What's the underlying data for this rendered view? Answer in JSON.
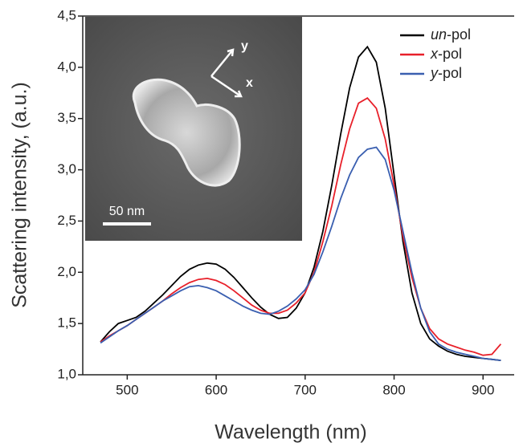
{
  "chart_data": {
    "type": "line",
    "xlabel": "Wavelength (nm)",
    "ylabel": "Scattering intensity, (a.u.)",
    "x": [
      470,
      480,
      490,
      500,
      510,
      520,
      530,
      540,
      550,
      560,
      570,
      580,
      590,
      600,
      610,
      620,
      630,
      640,
      650,
      660,
      670,
      680,
      690,
      700,
      710,
      720,
      730,
      740,
      750,
      760,
      770,
      780,
      790,
      800,
      810,
      820,
      830,
      840,
      850,
      860,
      870,
      880,
      890,
      900,
      910,
      920
    ],
    "series": [
      {
        "name": "un-pol",
        "color": "#000000",
        "values": [
          1.32,
          1.42,
          1.5,
          1.53,
          1.56,
          1.62,
          1.7,
          1.78,
          1.87,
          1.96,
          2.03,
          2.07,
          2.09,
          2.08,
          2.03,
          1.95,
          1.85,
          1.75,
          1.66,
          1.59,
          1.55,
          1.56,
          1.65,
          1.8,
          2.05,
          2.4,
          2.85,
          3.35,
          3.8,
          4.1,
          4.2,
          4.05,
          3.6,
          2.95,
          2.3,
          1.8,
          1.5,
          1.35,
          1.28,
          1.23,
          1.2,
          1.18,
          1.17,
          1.16,
          1.15,
          1.14
        ]
      },
      {
        "name": "x-pol",
        "color": "#e8202a",
        "values": [
          1.32,
          1.38,
          1.43,
          1.48,
          1.54,
          1.6,
          1.66,
          1.72,
          1.79,
          1.85,
          1.9,
          1.93,
          1.94,
          1.92,
          1.88,
          1.82,
          1.75,
          1.68,
          1.63,
          1.6,
          1.6,
          1.63,
          1.7,
          1.8,
          2.0,
          2.3,
          2.65,
          3.05,
          3.4,
          3.65,
          3.7,
          3.6,
          3.3,
          2.85,
          2.35,
          1.95,
          1.65,
          1.45,
          1.35,
          1.3,
          1.27,
          1.24,
          1.22,
          1.19,
          1.2,
          1.3
        ]
      },
      {
        "name": "y-pol",
        "color": "#3a5fb0",
        "values": [
          1.31,
          1.37,
          1.43,
          1.48,
          1.54,
          1.6,
          1.66,
          1.72,
          1.77,
          1.82,
          1.86,
          1.87,
          1.85,
          1.82,
          1.77,
          1.72,
          1.67,
          1.63,
          1.6,
          1.59,
          1.62,
          1.67,
          1.74,
          1.83,
          1.98,
          2.2,
          2.45,
          2.72,
          2.95,
          3.12,
          3.2,
          3.22,
          3.1,
          2.8,
          2.4,
          2.0,
          1.65,
          1.42,
          1.3,
          1.25,
          1.22,
          1.2,
          1.18,
          1.16,
          1.15,
          1.14
        ]
      }
    ],
    "xlim": [
      450,
      935
    ],
    "xticks": [
      500,
      600,
      700,
      800,
      900
    ],
    "ylim": [
      1.0,
      4.5
    ],
    "yticks": [
      {
        "value": 1.0,
        "label": "1,0"
      },
      {
        "value": 1.5,
        "label": "1,5"
      },
      {
        "value": 2.0,
        "label": "2,0"
      },
      {
        "value": 2.5,
        "label": "2,5"
      },
      {
        "value": 3.0,
        "label": "3,0"
      },
      {
        "value": 3.5,
        "label": "3,5"
      },
      {
        "value": 4.0,
        "label": "4,0"
      },
      {
        "value": 4.5,
        "label": "4,5"
      }
    ],
    "legend": "upper right",
    "inset": {
      "scale_bar": "50 nm",
      "axis_labels": [
        "y",
        "x"
      ]
    }
  }
}
